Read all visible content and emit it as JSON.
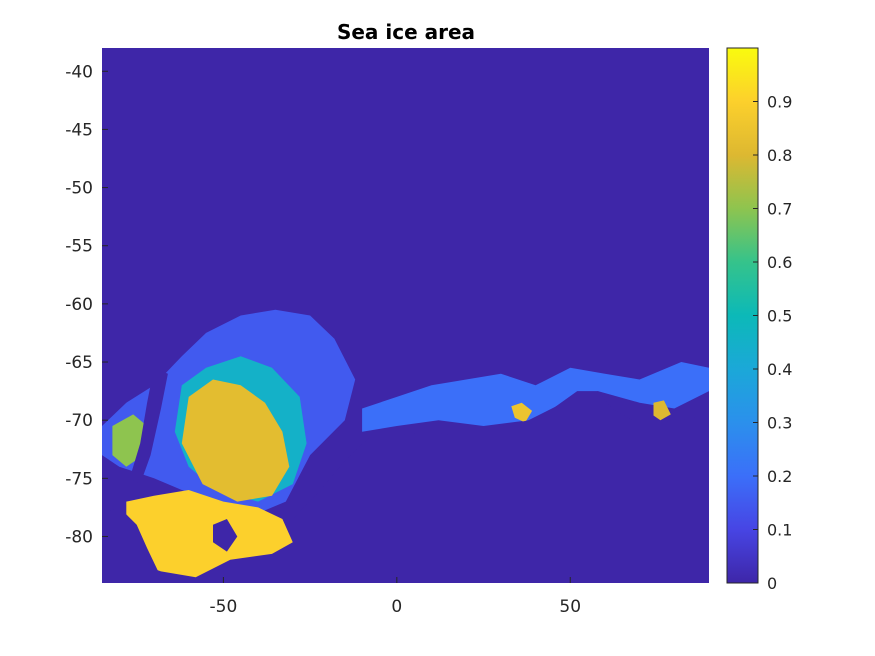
{
  "chart_data": {
    "type": "heatmap",
    "title": "Sea ice area",
    "xlabel": "",
    "ylabel": "",
    "xlim": [
      -85,
      90
    ],
    "ylim": [
      -84,
      -38
    ],
    "x_ticks": [
      -50,
      0,
      50
    ],
    "x_tick_labels": [
      "-50",
      "0",
      "50"
    ],
    "y_ticks": [
      -40,
      -45,
      -50,
      -55,
      -60,
      -65,
      -70,
      -75,
      -80
    ],
    "y_tick_labels": [
      "-40",
      "-45",
      "-50",
      "-55",
      "-60",
      "-65",
      "-70",
      "-75",
      "-80"
    ],
    "colorbar": {
      "colormap": "parula",
      "clim": [
        0,
        1
      ],
      "ticks": [
        0,
        0.1,
        0.2,
        0.3,
        0.4,
        0.5,
        0.6,
        0.7,
        0.8,
        0.9
      ],
      "tick_labels": [
        "0",
        "0.1",
        "0.2",
        "0.3",
        "0.4",
        "0.5",
        "0.6",
        "0.7",
        "0.8",
        "0.9"
      ]
    },
    "background_value": 0,
    "regions": [
      {
        "name_hint": "antarctic-peninsula-ice",
        "value": 0.15,
        "points": [
          [
            -85,
            -70.5
          ],
          [
            -78,
            -68.5
          ],
          [
            -70,
            -67
          ],
          [
            -62,
            -64.5
          ],
          [
            -55,
            -62.5
          ],
          [
            -45,
            -61
          ],
          [
            -35,
            -60.5
          ],
          [
            -25,
            -61
          ],
          [
            -18,
            -63
          ],
          [
            -12,
            -66.5
          ],
          [
            -15,
            -70
          ],
          [
            -25,
            -73
          ],
          [
            -32,
            -77
          ],
          [
            -40,
            -78
          ],
          [
            -52,
            -77
          ],
          [
            -62,
            -76
          ],
          [
            -70,
            -75
          ],
          [
            -80,
            -74
          ],
          [
            -85,
            -73
          ]
        ]
      },
      {
        "name_hint": "weddell-sea-mid",
        "value": 0.45,
        "points": [
          [
            -62,
            -67
          ],
          [
            -55,
            -65.5
          ],
          [
            -45,
            -64.5
          ],
          [
            -36,
            -65.5
          ],
          [
            -28,
            -68
          ],
          [
            -26,
            -72
          ],
          [
            -30,
            -75.5
          ],
          [
            -40,
            -77
          ],
          [
            -52,
            -76
          ],
          [
            -60,
            -74
          ],
          [
            -64,
            -71
          ]
        ]
      },
      {
        "name_hint": "weddell-sea-core",
        "value": 0.82,
        "points": [
          [
            -60,
            -68
          ],
          [
            -53,
            -66.5
          ],
          [
            -45,
            -67
          ],
          [
            -38,
            -68.5
          ],
          [
            -33,
            -71
          ],
          [
            -31,
            -74
          ],
          [
            -36,
            -76.5
          ],
          [
            -46,
            -77
          ],
          [
            -56,
            -75.5
          ],
          [
            -62,
            -72
          ]
        ]
      },
      {
        "name_hint": "ronne-shelf-ice",
        "value": 0.9,
        "points": [
          [
            -78,
            -77
          ],
          [
            -70,
            -76.5
          ],
          [
            -60,
            -76
          ],
          [
            -50,
            -77
          ],
          [
            -40,
            -77.5
          ],
          [
            -33,
            -78.5
          ],
          [
            -30,
            -80.5
          ],
          [
            -36,
            -81.5
          ],
          [
            -48,
            -82
          ],
          [
            -58,
            -83.5
          ],
          [
            -68,
            -83
          ],
          [
            -78,
            -82
          ]
        ]
      },
      {
        "name_hint": "bellingshausen-edge-ice",
        "value": 0.7,
        "points": [
          [
            -82,
            -70.5
          ],
          [
            -76,
            -69.5
          ],
          [
            -72,
            -70.5
          ],
          [
            -73,
            -73
          ],
          [
            -78,
            -74
          ],
          [
            -82,
            -73
          ]
        ]
      },
      {
        "name_hint": "east-coast-band",
        "value": 0.2,
        "points": [
          [
            -10,
            -69
          ],
          [
            0,
            -68
          ],
          [
            10,
            -67
          ],
          [
            20,
            -66.5
          ],
          [
            30,
            -66
          ],
          [
            40,
            -67
          ],
          [
            50,
            -65.5
          ],
          [
            60,
            -66
          ],
          [
            70,
            -66.5
          ],
          [
            82,
            -65
          ],
          [
            90,
            -65.5
          ],
          [
            90,
            -67.5
          ],
          [
            80,
            -69
          ],
          [
            70,
            -68.5
          ],
          [
            58,
            -67.5
          ],
          [
            48,
            -68.5
          ],
          [
            38,
            -70
          ],
          [
            25,
            -70.5
          ],
          [
            12,
            -70
          ],
          [
            0,
            -70.5
          ],
          [
            -10,
            -71
          ]
        ]
      },
      {
        "name_hint": "coastal-ice-patch-35e",
        "value": 0.85,
        "points": [
          [
            33,
            -68.8
          ],
          [
            36,
            -68.5
          ],
          [
            39,
            -69.2
          ],
          [
            37,
            -70.2
          ],
          [
            34,
            -69.8
          ]
        ]
      },
      {
        "name_hint": "coastal-ice-patch-75e",
        "value": 0.8,
        "points": [
          [
            74,
            -68.5
          ],
          [
            77,
            -68.3
          ],
          [
            79,
            -69.5
          ],
          [
            76,
            -70
          ],
          [
            74,
            -69.6
          ]
        ]
      }
    ],
    "land_masks": [
      {
        "name_hint": "antarctica-east",
        "points": [
          [
            -30,
            -78.5
          ],
          [
            -22,
            -76
          ],
          [
            -15,
            -73.5
          ],
          [
            -8,
            -71.5
          ],
          [
            0,
            -71.3
          ],
          [
            10,
            -71
          ],
          [
            20,
            -71.5
          ],
          [
            30,
            -70.5
          ],
          [
            38,
            -70
          ],
          [
            45,
            -69
          ],
          [
            52,
            -67.5
          ],
          [
            58,
            -67.5
          ],
          [
            62,
            -69
          ],
          [
            68,
            -70
          ],
          [
            75,
            -70.2
          ],
          [
            82,
            -70
          ],
          [
            90,
            -69.5
          ],
          [
            90,
            -84
          ],
          [
            -30,
            -84
          ]
        ]
      },
      {
        "name_hint": "antarctica-west",
        "points": [
          [
            -85,
            -78
          ],
          [
            -80,
            -77.5
          ],
          [
            -75,
            -79
          ],
          [
            -72,
            -81
          ],
          [
            -68,
            -83.5
          ],
          [
            -72,
            -84
          ],
          [
            -85,
            -84
          ]
        ]
      },
      {
        "name_hint": "peninsula-land",
        "points": [
          [
            -70,
            -65.5
          ],
          [
            -66,
            -66
          ],
          [
            -68,
            -69
          ],
          [
            -71,
            -73
          ],
          [
            -74,
            -75.5
          ],
          [
            -77,
            -75
          ],
          [
            -74,
            -72
          ],
          [
            -72,
            -68.5
          ]
        ]
      },
      {
        "name_hint": "berkner-island",
        "points": [
          [
            -53,
            -79
          ],
          [
            -49,
            -78.5
          ],
          [
            -46,
            -80
          ],
          [
            -49,
            -81.3
          ],
          [
            -53,
            -80.5
          ]
        ]
      }
    ]
  }
}
